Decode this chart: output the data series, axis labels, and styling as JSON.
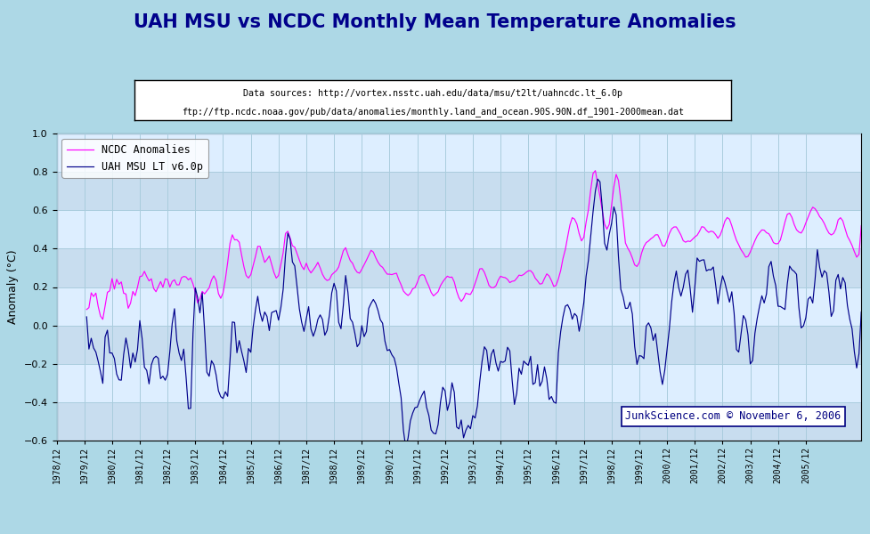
{
  "title": "UAH MSU vs NCDC Monthly Mean Temperature Anomalies",
  "title_color": "#00008B",
  "source_text1": "Data sources: http://vortex.nsstc.uah.edu/data/msu/t2lt/uahncdc.lt_6.0p",
  "source_text2": "ftp://ftp.ncdc.noaa.gov/pub/data/anomalies/monthly.land_and_ocean.90S.90N.df_1901-2000mean.dat",
  "ylabel": "Anomaly (°C)",
  "watermark": "JunkScience.com © November 6, 2006",
  "ylim": [
    -0.6,
    1.0
  ],
  "yticks": [
    -0.6,
    -0.4,
    -0.2,
    0.0,
    0.2,
    0.4,
    0.6,
    0.8,
    1.0
  ],
  "ncdc_color": "#FF00FF",
  "uah_color": "#00008B",
  "bg_outer": "#ADD8E6",
  "bg_inner": "#CCDDF0",
  "grid_color": "#AACCDD",
  "legend_ncdc": "NCDC Anomalies",
  "legend_uah": "UAH MSU LT v6.0p",
  "uah_data": [
    -0.1,
    -0.15,
    -0.07,
    -0.12,
    -0.1,
    -0.16,
    -0.19,
    -0.22,
    -0.09,
    -0.07,
    -0.12,
    -0.13,
    -0.19,
    -0.24,
    -0.22,
    -0.2,
    -0.15,
    -0.09,
    -0.11,
    -0.18,
    -0.21,
    -0.24,
    -0.17,
    -0.09,
    -0.08,
    -0.11,
    -0.1,
    -0.17,
    -0.19,
    -0.15,
    -0.13,
    -0.17,
    -0.21,
    -0.19,
    -0.14,
    -0.12,
    -0.08,
    -0.1,
    -0.06,
    -0.14,
    -0.19,
    -0.21,
    -0.13,
    -0.18,
    -0.25,
    -0.28,
    -0.22,
    -0.18,
    -0.18,
    -0.19,
    -0.09,
    -0.17,
    -0.27,
    -0.28,
    -0.17,
    -0.14,
    -0.17,
    -0.33,
    -0.41,
    -0.44,
    -0.3,
    -0.24,
    -0.17,
    -0.07,
    0.02,
    -0.04,
    0.07,
    0.01,
    -0.05,
    -0.12,
    -0.06,
    -0.03,
    0.09,
    0.08,
    0.13,
    0.1,
    0.03,
    0.05,
    0.1,
    0.07,
    0.05,
    -0.01,
    0.05,
    0.08,
    0.15,
    0.24,
    0.36,
    0.36,
    0.29,
    0.22,
    0.23,
    0.14,
    0.07,
    0.04,
    0.01,
    -0.01,
    -0.07,
    -0.13,
    -0.05,
    0.04,
    0.09,
    0.05,
    0.03,
    -0.01,
    -0.07,
    -0.09,
    -0.1,
    -0.08,
    -0.09,
    -0.1,
    -0.05,
    0.06,
    0.17,
    0.14,
    0.09,
    0.04,
    -0.03,
    -0.07,
    -0.09,
    -0.08,
    -0.06,
    0.01,
    0.07,
    0.09,
    0.11,
    0.05,
    0.01,
    -0.04,
    -0.07,
    -0.11,
    -0.09,
    -0.07,
    -0.11,
    -0.13,
    -0.1,
    -0.15,
    -0.28,
    -0.4,
    -0.48,
    -0.53,
    -0.47,
    -0.45,
    -0.37,
    -0.3,
    -0.26,
    -0.28,
    -0.28,
    -0.35,
    -0.38,
    -0.43,
    -0.45,
    -0.42,
    -0.44,
    -0.42,
    -0.38,
    -0.33,
    -0.27,
    -0.25,
    -0.18,
    -0.14,
    -0.2,
    -0.25,
    -0.23,
    -0.22,
    -0.25,
    -0.3,
    -0.3,
    -0.26,
    -0.25,
    -0.2,
    -0.14,
    -0.12,
    -0.1,
    -0.14,
    -0.19,
    -0.14,
    -0.19,
    -0.22,
    -0.19,
    -0.18,
    -0.19,
    -0.21,
    -0.18,
    -0.22,
    -0.27,
    -0.26,
    -0.23,
    -0.22,
    -0.29,
    -0.26,
    -0.23,
    -0.2,
    -0.18,
    -0.23,
    -0.2,
    -0.22,
    -0.27,
    -0.31,
    -0.29,
    -0.27,
    -0.31,
    -0.34,
    -0.29,
    -0.27,
    -0.1,
    -0.08,
    -0.02,
    0.05,
    0.12,
    0.14,
    0.12,
    0.1,
    0.03,
    -0.04,
    0.03,
    0.16,
    0.31,
    0.36,
    0.46,
    0.55,
    0.62,
    0.65,
    0.72,
    0.66,
    0.5,
    0.31,
    0.23,
    0.18,
    0.17,
    0.16,
    0.13,
    0.1,
    0.07,
    0.04,
    0.02,
    0.0,
    -0.04,
    -0.11,
    -0.17,
    -0.15,
    -0.08,
    -0.04,
    0.04,
    0.07,
    0.12,
    0.14,
    0.17,
    0.15,
    0.12,
    0.09,
    0.1,
    0.14,
    0.18,
    0.24,
    0.28,
    0.3,
    0.27,
    0.25,
    0.22,
    0.19,
    0.17,
    0.15,
    0.14,
    0.18,
    0.25,
    0.3,
    0.36,
    0.35,
    0.29,
    0.26,
    0.23,
    0.2,
    0.16,
    0.12,
    0.15,
    0.2,
    0.25,
    0.28,
    0.26,
    0.21,
    0.15,
    0.08,
    0.02,
    -0.05,
    -0.09,
    -0.14,
    -0.19,
    -0.22,
    -0.16,
    -0.1,
    -0.03,
    0.05,
    0.1,
    0.15,
    0.18,
    0.2,
    0.18,
    0.15,
    0.11,
    0.08,
    0.1,
    0.14,
    0.18,
    0.22,
    0.25,
    0.27,
    0.25,
    0.22,
    0.18,
    0.14,
    0.12,
    0.1,
    0.08,
    0.12,
    0.17,
    0.22,
    0.25,
    0.28,
    0.3,
    0.27,
    0.22,
    0.17,
    0.13,
    0.16,
    0.24,
    0.3,
    0.26,
    0.2,
    0.15,
    0.1,
    0.05,
    0.0,
    -0.06,
    -0.12,
    -0.08,
    0.2
  ],
  "ncdc_data": [
    0.1,
    0.11,
    0.18,
    0.15,
    0.17,
    0.12,
    0.09,
    0.08,
    0.14,
    0.19,
    0.17,
    0.21,
    0.14,
    0.18,
    0.15,
    0.18,
    0.16,
    0.19,
    0.13,
    0.16,
    0.22,
    0.19,
    0.22,
    0.26,
    0.25,
    0.27,
    0.25,
    0.24,
    0.26,
    0.21,
    0.19,
    0.22,
    0.26,
    0.24,
    0.28,
    0.26,
    0.2,
    0.22,
    0.24,
    0.23,
    0.23,
    0.25,
    0.24,
    0.23,
    0.22,
    0.25,
    0.25,
    0.24,
    0.2,
    0.21,
    0.22,
    0.18,
    0.18,
    0.19,
    0.23,
    0.26,
    0.25,
    0.19,
    0.16,
    0.17,
    0.22,
    0.29,
    0.38,
    0.43,
    0.42,
    0.44,
    0.44,
    0.38,
    0.32,
    0.27,
    0.25,
    0.26,
    0.3,
    0.34,
    0.39,
    0.4,
    0.38,
    0.35,
    0.36,
    0.37,
    0.33,
    0.3,
    0.29,
    0.32,
    0.38,
    0.43,
    0.52,
    0.53,
    0.5,
    0.46,
    0.45,
    0.41,
    0.37,
    0.33,
    0.3,
    0.32,
    0.28,
    0.26,
    0.28,
    0.3,
    0.32,
    0.29,
    0.26,
    0.24,
    0.22,
    0.21,
    0.23,
    0.25,
    0.27,
    0.29,
    0.33,
    0.38,
    0.42,
    0.41,
    0.39,
    0.37,
    0.33,
    0.3,
    0.28,
    0.29,
    0.32,
    0.36,
    0.39,
    0.41,
    0.4,
    0.38,
    0.36,
    0.33,
    0.3,
    0.27,
    0.26,
    0.27,
    0.27,
    0.27,
    0.27,
    0.24,
    0.22,
    0.19,
    0.17,
    0.15,
    0.16,
    0.19,
    0.2,
    0.22,
    0.24,
    0.24,
    0.24,
    0.22,
    0.21,
    0.19,
    0.18,
    0.19,
    0.2,
    0.23,
    0.25,
    0.27,
    0.3,
    0.32,
    0.34,
    0.32,
    0.28,
    0.26,
    0.25,
    0.26,
    0.28,
    0.27,
    0.26,
    0.27,
    0.29,
    0.31,
    0.33,
    0.31,
    0.28,
    0.26,
    0.25,
    0.26,
    0.26,
    0.25,
    0.26,
    0.28,
    0.29,
    0.3,
    0.29,
    0.26,
    0.25,
    0.24,
    0.25,
    0.26,
    0.24,
    0.23,
    0.24,
    0.26,
    0.27,
    0.26,
    0.24,
    0.24,
    0.24,
    0.25,
    0.27,
    0.28,
    0.26,
    0.24,
    0.22,
    0.23,
    0.26,
    0.3,
    0.37,
    0.43,
    0.5,
    0.55,
    0.57,
    0.55,
    0.52,
    0.47,
    0.44,
    0.47,
    0.56,
    0.63,
    0.73,
    0.81,
    0.83,
    0.77,
    0.7,
    0.61,
    0.53,
    0.48,
    0.47,
    0.5,
    0.52,
    0.54,
    0.52,
    0.47,
    0.43,
    0.4,
    0.38,
    0.36,
    0.33,
    0.3,
    0.3,
    0.32,
    0.36,
    0.39,
    0.42,
    0.44,
    0.45,
    0.44,
    0.43,
    0.42,
    0.4,
    0.38,
    0.38,
    0.4,
    0.43,
    0.46,
    0.48,
    0.49,
    0.48,
    0.47,
    0.45,
    0.44,
    0.43,
    0.41,
    0.42,
    0.45,
    0.49,
    0.54,
    0.58,
    0.57,
    0.53,
    0.49,
    0.47,
    0.45,
    0.43,
    0.41,
    0.43,
    0.47,
    0.52,
    0.55,
    0.55,
    0.52,
    0.48,
    0.44,
    0.41,
    0.38,
    0.36,
    0.34,
    0.35,
    0.38,
    0.41,
    0.44,
    0.47,
    0.49,
    0.5,
    0.49,
    0.47,
    0.46,
    0.44,
    0.42,
    0.43,
    0.45,
    0.48,
    0.52,
    0.55,
    0.57,
    0.57,
    0.56,
    0.54,
    0.52,
    0.5,
    0.48,
    0.49,
    0.52,
    0.55,
    0.58,
    0.6,
    0.59,
    0.57,
    0.54,
    0.52,
    0.5,
    0.48,
    0.47,
    0.48,
    0.51,
    0.54,
    0.57,
    0.56,
    0.54,
    0.51,
    0.48,
    0.46,
    0.44,
    0.42,
    0.4,
    0.41,
    0.55
  ]
}
